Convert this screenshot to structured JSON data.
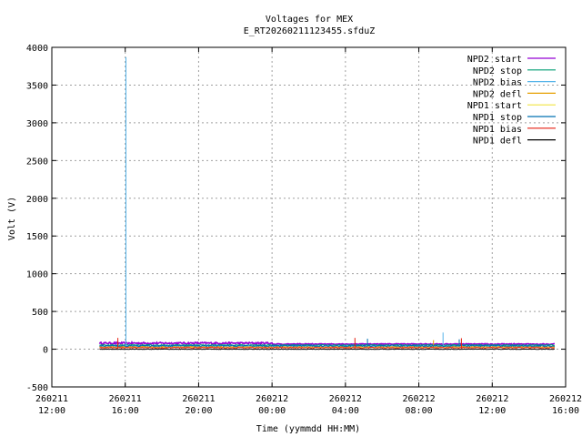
{
  "chart_data": {
    "type": "line",
    "title": "Voltages for MEX",
    "subtitle": "E_RT20260211123455.sfduZ",
    "xlabel": "Time (yymmdd HH:MM)",
    "ylabel": "Volt (V)",
    "ylim": [
      -500,
      4000
    ],
    "yticks": [
      "-500",
      "0",
      "500",
      "1000",
      "1500",
      "2000",
      "2500",
      "3000",
      "3500",
      "4000"
    ],
    "xlim_hours": [
      12,
      40
    ],
    "xticks": [
      {
        "hours": 12,
        "line1": "260211",
        "line2": "12:00"
      },
      {
        "hours": 16,
        "line1": "260211",
        "line2": "16:00"
      },
      {
        "hours": 20,
        "line1": "260211",
        "line2": "20:00"
      },
      {
        "hours": 24,
        "line1": "260212",
        "line2": "00:00"
      },
      {
        "hours": 28,
        "line1": "260212",
        "line2": "04:00"
      },
      {
        "hours": 32,
        "line1": "260212",
        "line2": "08:00"
      },
      {
        "hours": 36,
        "line1": "260212",
        "line2": "12:00"
      },
      {
        "hours": 40,
        "line1": "260212",
        "line2": "16:00"
      }
    ],
    "grid": true,
    "legend_position": "top-right",
    "data_start_hours": 14.6,
    "data_end_hours": 39.4,
    "series": [
      {
        "name": "NPD2 start",
        "color": "#9400d3",
        "base": 80,
        "noise": 12,
        "spikes": [],
        "dense_until_hours": 24
      },
      {
        "name": "NPD2 stop",
        "color": "#009e73",
        "base": 55,
        "noise": 6,
        "spikes": []
      },
      {
        "name": "NPD2 bias",
        "color": "#56b4e9",
        "base": 40,
        "noise": 10,
        "spikes": [
          {
            "hours": 16.05,
            "value": 3870
          },
          {
            "hours": 33.3,
            "value": 220
          }
        ]
      },
      {
        "name": "NPD2 defl",
        "color": "#e69f00",
        "base": 30,
        "noise": 8,
        "spikes": [
          {
            "hours": 32.8,
            "value": 120
          }
        ]
      },
      {
        "name": "NPD1 start",
        "color": "#f0e442",
        "base": 25,
        "noise": 5,
        "spikes": []
      },
      {
        "name": "NPD1 stop",
        "color": "#0072b2",
        "base": 45,
        "noise": 10,
        "spikes": [
          {
            "hours": 29.2,
            "value": 140
          },
          {
            "hours": 34.2,
            "value": 130
          }
        ]
      },
      {
        "name": "NPD1 bias",
        "color": "#e51e10",
        "base": 20,
        "noise": 6,
        "spikes": [
          {
            "hours": 15.6,
            "value": 150
          },
          {
            "hours": 28.5,
            "value": 150
          },
          {
            "hours": 34.3,
            "value": 145
          }
        ]
      },
      {
        "name": "NPD1 defl",
        "color": "#000000",
        "base": 0,
        "noise": 3,
        "spikes": []
      }
    ]
  }
}
